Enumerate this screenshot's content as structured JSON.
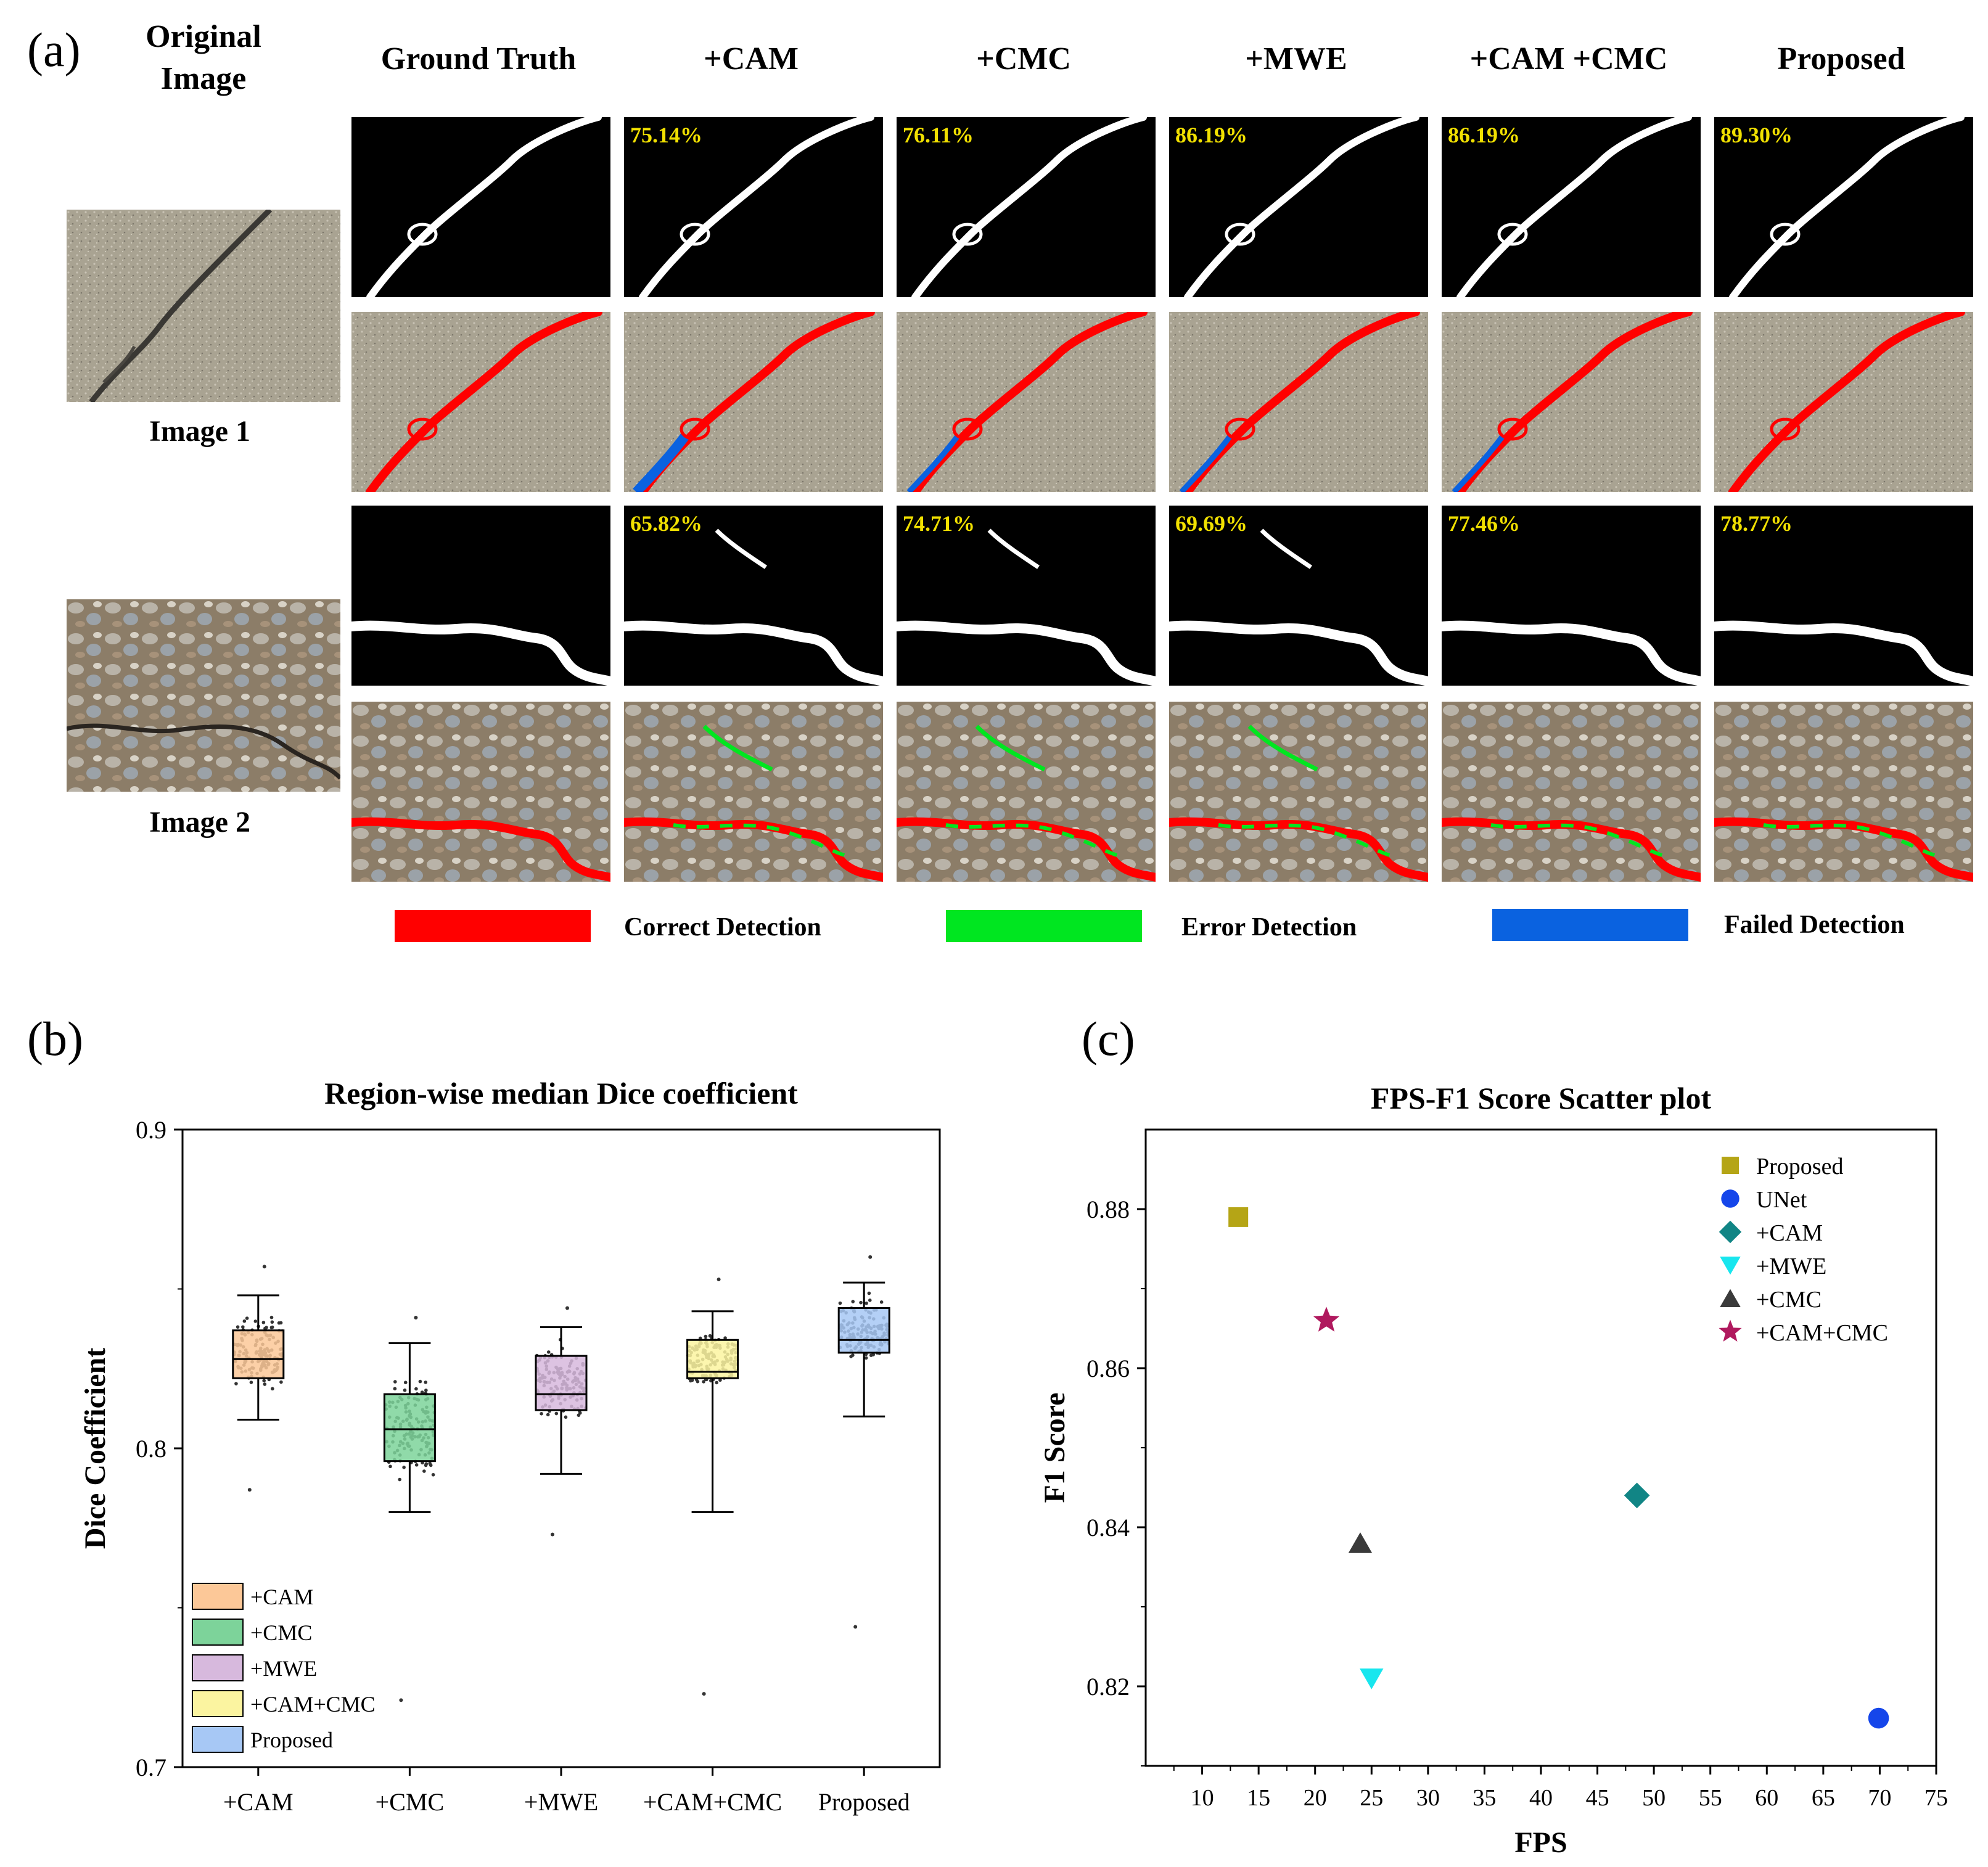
{
  "panel_a": {
    "letter": "(a)",
    "original_header": [
      "Original",
      "Image"
    ],
    "columns": [
      "Ground Truth",
      "+CAM",
      "+CMC",
      "+MWE",
      "+CAM +CMC",
      "Proposed"
    ],
    "image_labels": [
      "Image 1",
      "Image 2"
    ],
    "scores_image1": [
      "75.14%",
      "76.11%",
      "86.19%",
      "86.19%",
      "89.30%"
    ],
    "scores_image2": [
      "65.82%",
      "74.71%",
      "69.69%",
      "77.46%",
      "78.77%"
    ],
    "legend": [
      {
        "label": "Correct Detection",
        "color": "#ff0000"
      },
      {
        "label": "Error Detection",
        "color": "#00e620"
      },
      {
        "label": "Failed Detection",
        "color": "#0a62e0"
      }
    ]
  },
  "panel_b": {
    "letter": "(b)",
    "chart_data": {
      "type": "box",
      "title": "Region-wise median Dice coefficient",
      "ylabel": "Dice Coefficient",
      "xlabel": "",
      "ylim": [
        0.7,
        0.9
      ],
      "yticks": [
        "0.7",
        "0.8",
        "0.9"
      ],
      "categories": [
        "+CAM",
        "+CMC",
        "+MWE",
        "+CAM+CMC",
        "Proposed"
      ],
      "boxes": [
        {
          "name": "+CAM",
          "whisker_low": 0.809,
          "q1": 0.822,
          "median": 0.828,
          "q3": 0.837,
          "whisker_high": 0.848,
          "color": "#fcc898",
          "outliers_low": 0.787,
          "outliers_high": 0.857
        },
        {
          "name": "+CMC",
          "whisker_low": 0.78,
          "q1": 0.796,
          "median": 0.806,
          "q3": 0.817,
          "whisker_high": 0.833,
          "color": "#7dd39a",
          "outliers_low": 0.721,
          "outliers_high": 0.841
        },
        {
          "name": "+MWE",
          "whisker_low": 0.792,
          "q1": 0.812,
          "median": 0.817,
          "q3": 0.829,
          "whisker_high": 0.838,
          "color": "#d7b9dd",
          "outliers_low": 0.773,
          "outliers_high": 0.844
        },
        {
          "name": "+CAM+CMC",
          "whisker_low": 0.78,
          "q1": 0.822,
          "median": 0.824,
          "q3": 0.834,
          "whisker_high": 0.843,
          "color": "#fbf4a0",
          "outliers_low": 0.723,
          "outliers_high": 0.853
        },
        {
          "name": "Proposed",
          "whisker_low": 0.81,
          "q1": 0.83,
          "median": 0.834,
          "q3": 0.844,
          "whisker_high": 0.852,
          "color": "#a7c8f5",
          "outliers_low": 0.744,
          "outliers_high": 0.86
        }
      ],
      "legend": [
        "+CAM",
        "+CMC",
        "+MWE",
        "+CAM+CMC",
        "Proposed"
      ]
    }
  },
  "panel_c": {
    "letter": "(c)",
    "chart_data": {
      "type": "scatter",
      "title": "FPS-F1 Score Scatter plot",
      "xlabel": "FPS",
      "ylabel": "F1 Score",
      "xlim": [
        5,
        75
      ],
      "ylim": [
        0.81,
        0.89
      ],
      "xticks": [
        "10",
        "15",
        "20",
        "25",
        "30",
        "35",
        "40",
        "45",
        "50",
        "55",
        "60",
        "65",
        "70",
        "75"
      ],
      "yticks": [
        "0.82",
        "0.84",
        "0.86",
        "0.88"
      ],
      "series": [
        {
          "name": "Proposed",
          "x": 13.2,
          "y": 0.879,
          "marker": "square",
          "color": "#b5a516"
        },
        {
          "name": "UNet",
          "x": 69.9,
          "y": 0.816,
          "marker": "circle",
          "color": "#1546ea"
        },
        {
          "name": "+CAM",
          "x": 48.5,
          "y": 0.844,
          "marker": "diamond",
          "color": "#118585"
        },
        {
          "name": "+MWE",
          "x": 25.0,
          "y": 0.821,
          "marker": "triangle-down",
          "color": "#18e6ee"
        },
        {
          "name": "+CMC",
          "x": 24.0,
          "y": 0.838,
          "marker": "triangle-up",
          "color": "#3a3a3a"
        },
        {
          "name": "+CAM+CMC",
          "x": 21.0,
          "y": 0.866,
          "marker": "star",
          "color": "#b0195e"
        }
      ]
    }
  }
}
